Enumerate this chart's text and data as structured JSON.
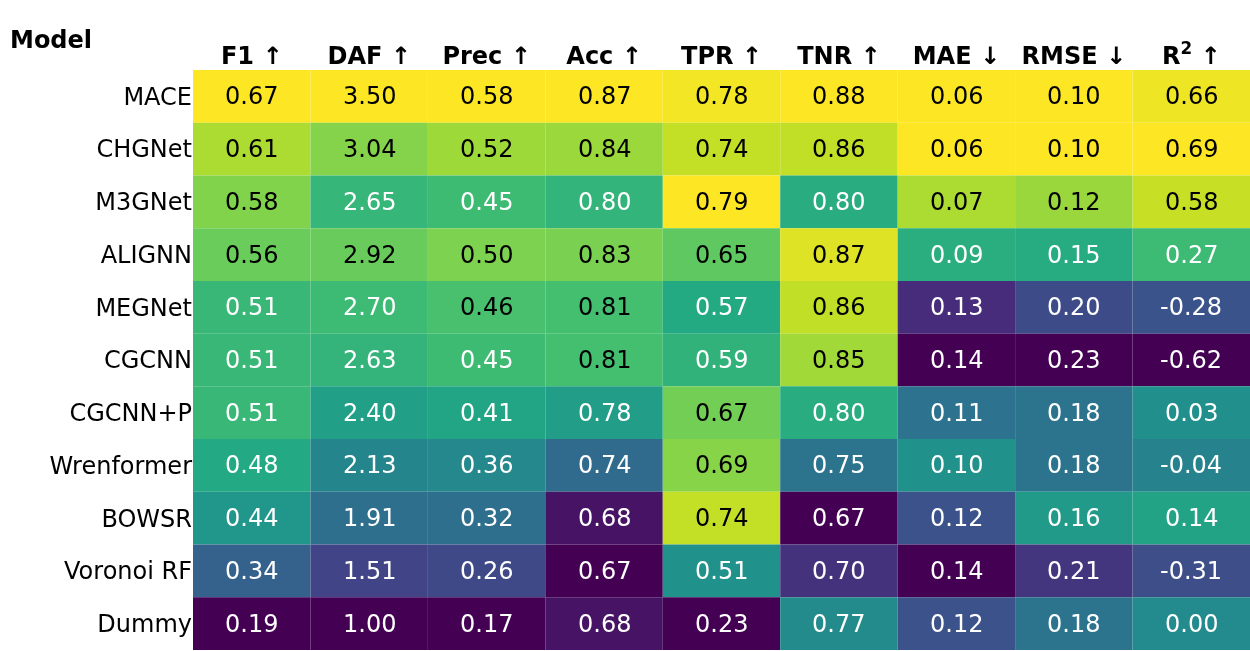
{
  "chart_data": {
    "type": "heatmap",
    "ylabel": "Model",
    "categories": [
      "F1 ↑",
      "DAF ↑",
      "Prec ↑",
      "Acc ↑",
      "TPR ↑",
      "TNR ↑",
      "MAE ↓",
      "RMSE ↓",
      "R$^{2}$ ↑"
    ],
    "y_categories": [
      "MACE",
      "CHGNet",
      "M3GNet",
      "ALIGNN",
      "MEGNet",
      "CGCNN",
      "CGCNN+P",
      "Wrenformer",
      "BOWSR",
      "Voronoi RF",
      "Dummy"
    ],
    "cells": [
      [
        0.67,
        3.5,
        0.58,
        0.87,
        0.78,
        0.88,
        0.06,
        0.1,
        0.66
      ],
      [
        0.61,
        3.04,
        0.52,
        0.84,
        0.74,
        0.86,
        0.06,
        0.1,
        0.69
      ],
      [
        0.58,
        2.65,
        0.45,
        0.8,
        0.79,
        0.8,
        0.07,
        0.12,
        0.58
      ],
      [
        0.56,
        2.92,
        0.5,
        0.83,
        0.65,
        0.87,
        0.09,
        0.15,
        0.27
      ],
      [
        0.51,
        2.7,
        0.46,
        0.81,
        0.57,
        0.86,
        0.13,
        0.2,
        -0.28
      ],
      [
        0.51,
        2.63,
        0.45,
        0.81,
        0.59,
        0.85,
        0.14,
        0.23,
        -0.62
      ],
      [
        0.51,
        2.4,
        0.41,
        0.78,
        0.67,
        0.8,
        0.11,
        0.18,
        0.03
      ],
      [
        0.48,
        2.13,
        0.36,
        0.74,
        0.69,
        0.75,
        0.1,
        0.18,
        -0.04
      ],
      [
        0.44,
        1.91,
        0.32,
        0.68,
        0.74,
        0.67,
        0.12,
        0.16,
        0.14
      ],
      [
        0.34,
        1.51,
        0.26,
        0.67,
        0.51,
        0.7,
        0.14,
        0.21,
        -0.31
      ],
      [
        0.19,
        1.0,
        0.17,
        0.68,
        0.23,
        0.77,
        0.12,
        0.18,
        0.0
      ]
    ],
    "cell_labels": [
      [
        "0.67",
        "3.50",
        "0.58",
        "0.87",
        "0.78",
        "0.88",
        "0.06",
        "0.10",
        "0.66"
      ],
      [
        "0.61",
        "3.04",
        "0.52",
        "0.84",
        "0.74",
        "0.86",
        "0.06",
        "0.10",
        "0.69"
      ],
      [
        "0.58",
        "2.65",
        "0.45",
        "0.80",
        "0.79",
        "0.80",
        "0.07",
        "0.12",
        "0.58"
      ],
      [
        "0.56",
        "2.92",
        "0.50",
        "0.83",
        "0.65",
        "0.87",
        "0.09",
        "0.15",
        "0.27"
      ],
      [
        "0.51",
        "2.70",
        "0.46",
        "0.81",
        "0.57",
        "0.86",
        "0.13",
        "0.20",
        "-0.28"
      ],
      [
        "0.51",
        "2.63",
        "0.45",
        "0.81",
        "0.59",
        "0.85",
        "0.14",
        "0.23",
        "-0.62"
      ],
      [
        "0.51",
        "2.40",
        "0.41",
        "0.78",
        "0.67",
        "0.80",
        "0.11",
        "0.18",
        "0.03"
      ],
      [
        "0.48",
        "2.13",
        "0.36",
        "0.74",
        "0.69",
        "0.75",
        "0.10",
        "0.18",
        "-0.04"
      ],
      [
        "0.44",
        "1.91",
        "0.32",
        "0.68",
        "0.74",
        "0.67",
        "0.12",
        "0.16",
        "0.14"
      ],
      [
        "0.34",
        "1.51",
        "0.26",
        "0.67",
        "0.51",
        "0.70",
        "0.14",
        "0.21",
        "-0.31"
      ],
      [
        "0.19",
        "1.00",
        "0.17",
        "0.68",
        "0.23",
        "0.77",
        "0.12",
        "0.18",
        "0.00"
      ]
    ]
  }
}
